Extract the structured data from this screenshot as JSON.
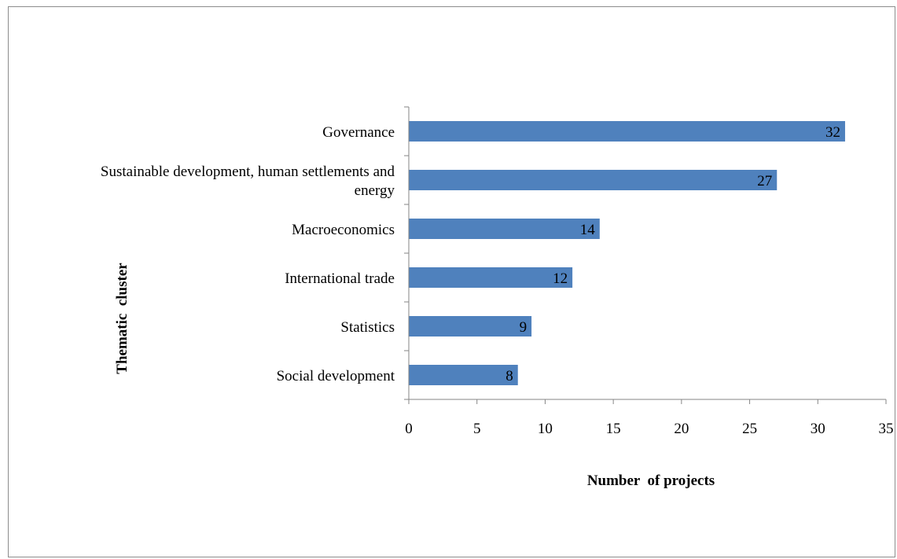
{
  "chart_data": {
    "type": "bar",
    "orientation": "horizontal",
    "categories": [
      "Governance",
      [
        "Sustainable development, human settlements and",
        "energy"
      ],
      "Macroeconomics",
      "International trade",
      "Statistics",
      "Social development"
    ],
    "values": [
      32,
      27,
      14,
      12,
      9,
      8
    ],
    "data_labels": [
      "32",
      "27",
      "14",
      "12",
      "9",
      "8"
    ],
    "title": "",
    "xlabel": "Number  of projects",
    "ylabel": "Thematic  cluster",
    "xlim": [
      0,
      35
    ],
    "xticks": [
      0,
      5,
      10,
      15,
      20,
      25,
      30,
      35
    ],
    "xtick_labels": [
      "0",
      "5",
      "10",
      "15",
      "20",
      "25",
      "30",
      "35"
    ],
    "grid": false,
    "legend": "none",
    "bar_color": "#4f81bd",
    "axis_color": "#868686"
  }
}
